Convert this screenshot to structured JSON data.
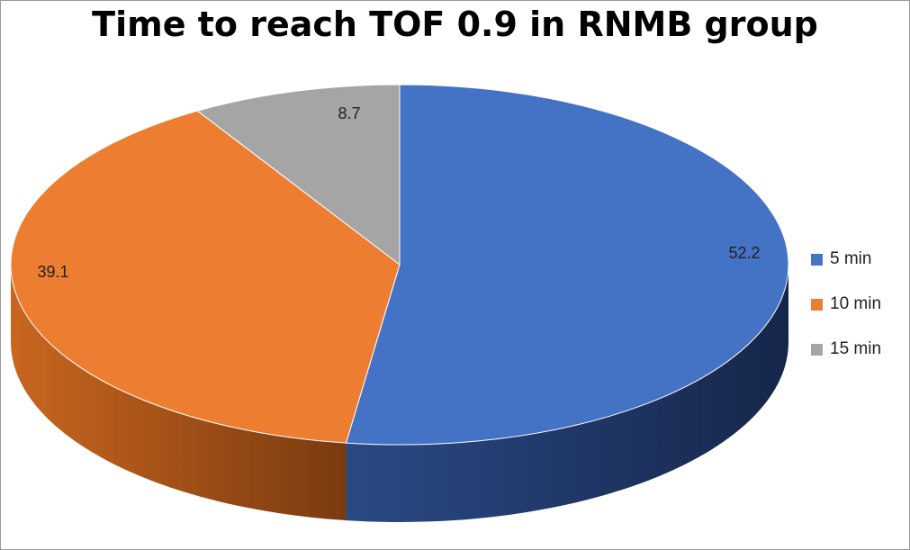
{
  "chart_data": {
    "type": "pie",
    "title": "Time to reach TOF 0.9 in RNMB group",
    "categories": [
      "5 min",
      "10 min",
      "15 min"
    ],
    "values": [
      52.2,
      39.1,
      8.7
    ],
    "data_labels": [
      "52.2",
      "39.1",
      "8.7"
    ],
    "colors": [
      "#4472C4",
      "#ED7D31",
      "#A5A5A5"
    ],
    "three_d": true,
    "legend_position": "right"
  }
}
